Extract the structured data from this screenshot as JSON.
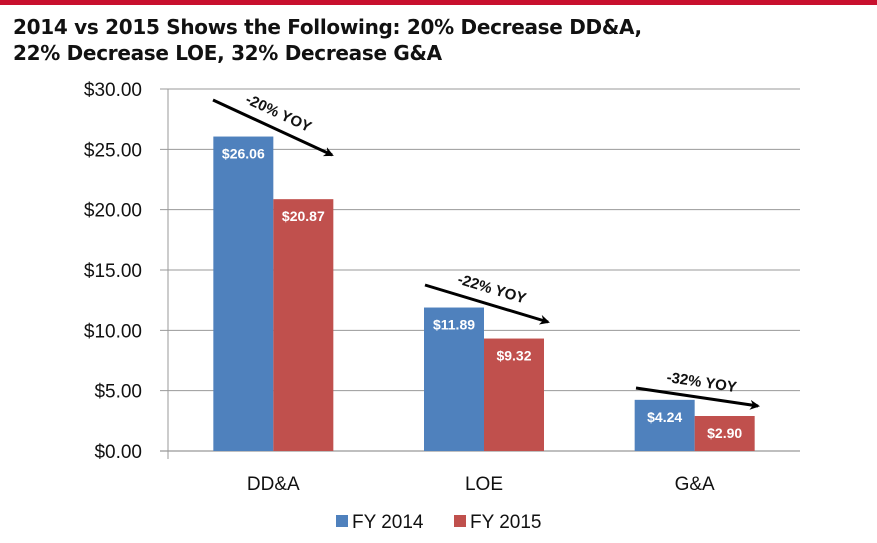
{
  "title_line1": "2014 vs 2015 Shows the Following: 20% Decrease DD&A,",
  "title_line2": "22% Decrease LOE, 32% Decrease G&A",
  "colors": {
    "top_bar": "#c8102e",
    "fy2014": "#4f81bd",
    "fy2015": "#c0504d"
  },
  "chart_data": {
    "type": "bar",
    "title": "2014 vs 2015 Shows the Following: 20% Decrease DD&A, 22% Decrease LOE, 32% Decrease G&A",
    "categories": [
      "DD&A",
      "LOE",
      "G&A"
    ],
    "series": [
      {
        "name": "FY 2014",
        "values": [
          26.06,
          11.89,
          4.24
        ],
        "labels": [
          "$26.06",
          "$11.89",
          "$4.24"
        ]
      },
      {
        "name": "FY 2015",
        "values": [
          20.87,
          9.32,
          2.9
        ],
        "labels": [
          "$20.87",
          "$9.32",
          "$2.90"
        ]
      }
    ],
    "ylim": [
      0,
      30
    ],
    "yticks": [
      "$0.00",
      "$5.00",
      "$10.00",
      "$15.00",
      "$20.00",
      "$25.00",
      "$30.00"
    ],
    "grid": true,
    "legend": "bottom",
    "annotations": [
      "-20% YOY",
      "-22% YOY",
      "-32% YOY"
    ]
  }
}
